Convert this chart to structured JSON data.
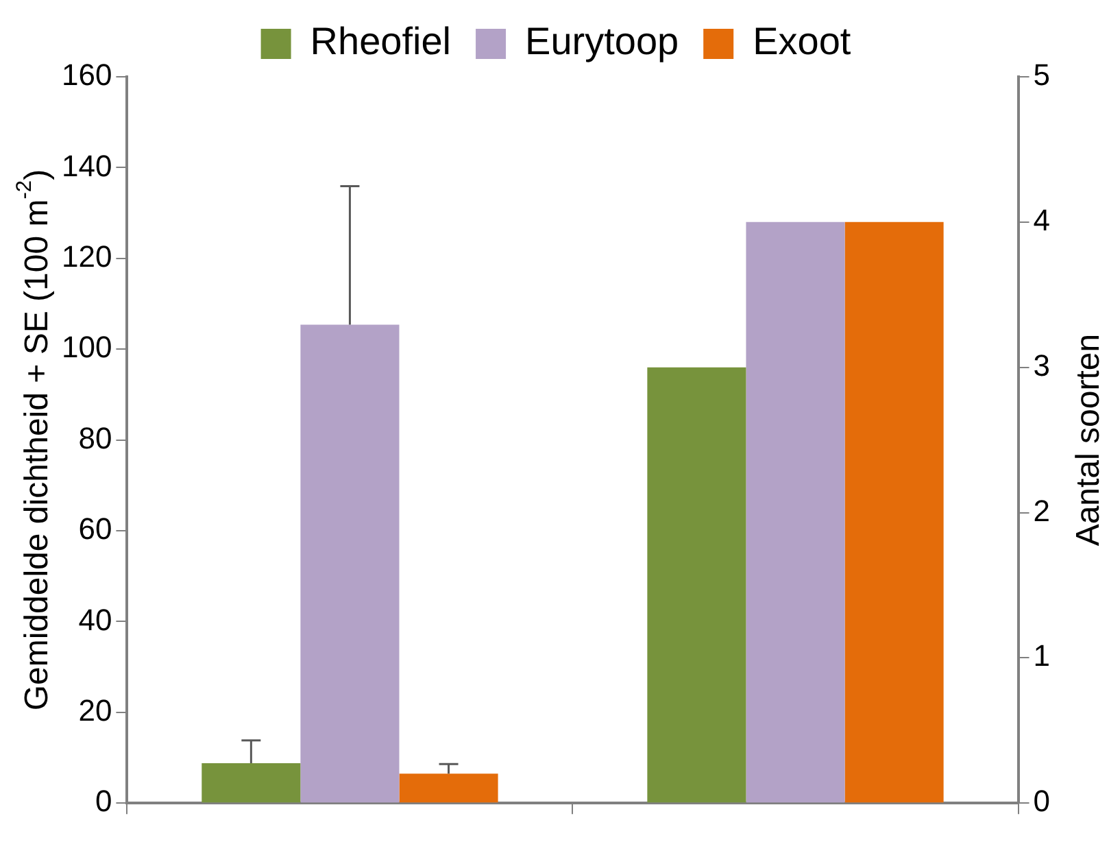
{
  "chart_data": {
    "type": "bar",
    "categories": [
      null,
      null
    ],
    "series": [
      {
        "name": "Rheofiel",
        "color": "#77933c",
        "values": [
          8.8,
          null
        ],
        "errors": [
          [
            8.8,
            13.8
          ],
          null
        ]
      },
      {
        "name": "Eurytoop",
        "color": "#b3a2c7",
        "values": [
          105.4,
          null
        ],
        "errors": [
          [
            105.4,
            135.9
          ],
          null
        ]
      },
      {
        "name": "Exoot",
        "color": "#e46c0a",
        "values": [
          6.5,
          null
        ],
        "errors": [
          [
            6.5,
            8.6
          ],
          null
        ]
      },
      {
        "color": "#77933c",
        "values": [
          null,
          3
        ],
        "axis": "y2"
      },
      {
        "color": "#b3a2c7",
        "values": [
          null,
          4
        ],
        "axis": "y2"
      },
      {
        "color": "#e46c0a",
        "values": [
          null,
          4
        ],
        "axis": "y2"
      }
    ],
    "ylabel": "Gemiddelde dichtheid + SE (100 m$^{-2}$)",
    "y2label": "Aantal soorten",
    "ylim": [
      0,
      160
    ],
    "yticks": [
      0,
      20,
      40,
      60,
      80,
      100,
      120,
      140,
      160
    ],
    "y2lim": [
      0,
      5
    ],
    "y2ticks": [
      0,
      1,
      2,
      3,
      4,
      5
    ],
    "grid": false,
    "legend": "top"
  }
}
